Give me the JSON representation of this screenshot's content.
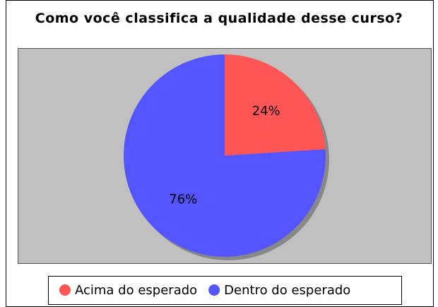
{
  "chart_data": {
    "type": "pie",
    "title": "Como você classifica a qualidade desse curso?",
    "categories": [
      "Acima do esperado",
      "Dentro do esperado"
    ],
    "values": [
      24,
      76
    ],
    "value_labels": [
      "24%",
      "76%"
    ],
    "colors": [
      "#ff5555",
      "#5555ff"
    ],
    "legend": "bottom"
  }
}
